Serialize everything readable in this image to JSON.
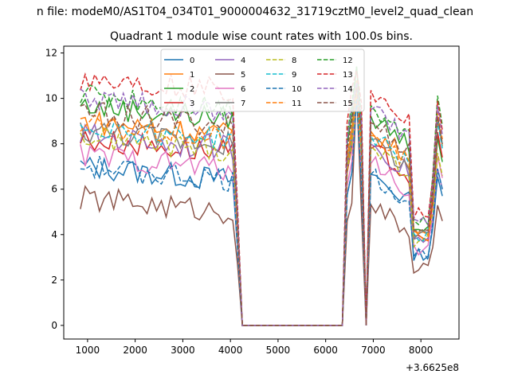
{
  "suptitle": "n file: modeM0/AS1T04_034T01_9000004632_31719cztM0_level2_quad_clean",
  "chart_data": {
    "type": "line",
    "title": "Quadrant 1 module wise count rates with 100.0s bins.",
    "xlabel": "",
    "ylabel": "",
    "x_offset_label": "+3.6625e8",
    "xlim": [
      500,
      8800
    ],
    "ylim": [
      -0.6,
      12.3
    ],
    "x_ticks": [
      1000,
      2000,
      3000,
      4000,
      5000,
      6000,
      7000,
      8000
    ],
    "y_ticks": [
      0,
      2,
      4,
      6,
      8,
      10,
      12
    ],
    "x_tick_labels": [
      "1000",
      "2000",
      "3000",
      "4000",
      "5000",
      "6000",
      "7000",
      "8000"
    ],
    "y_tick_labels": [
      "0",
      "2",
      "4",
      "6",
      "8",
      "10",
      "12"
    ],
    "legend_ncol": 4,
    "legend_position": "upper-center",
    "colors": [
      "#1f77b4",
      "#ff7f0e",
      "#2ca02c",
      "#d62728",
      "#9467bd",
      "#8c564b",
      "#e377c2",
      "#7f7f7f",
      "#bcbd22",
      "#17becf"
    ],
    "x": [
      850,
      950,
      1050,
      1150,
      1250,
      1350,
      1450,
      1550,
      1650,
      1750,
      1850,
      1950,
      2050,
      2150,
      2250,
      2350,
      2450,
      2550,
      2650,
      2750,
      2850,
      2950,
      3050,
      3150,
      3250,
      3350,
      3450,
      3550,
      3650,
      3750,
      3850,
      3950,
      4050,
      4150,
      4250,
      6350,
      6450,
      6550,
      6650,
      6750,
      6850,
      6950,
      7050,
      7150,
      7250,
      7350,
      7450,
      7550,
      7650,
      7750,
      7850,
      7950,
      8050,
      8150,
      8250,
      8350,
      8450
    ],
    "series": [
      {
        "name": "0",
        "base": 7.0,
        "style": "solid",
        "color_index": 0,
        "end_value": 5.7,
        "peak_value": 10.2
      },
      {
        "name": "1",
        "base": 9.0,
        "style": "solid",
        "color_index": 1,
        "end_value": 7.9,
        "peak_value": 10.8
      },
      {
        "name": "2",
        "base": 9.7,
        "style": "solid",
        "color_index": 2,
        "end_value": 7.2,
        "peak_value": 11.4
      },
      {
        "name": "3",
        "base": 8.2,
        "style": "solid",
        "color_index": 3,
        "end_value": 7.4,
        "peak_value": 10.6
      },
      {
        "name": "4",
        "base": 8.4,
        "style": "solid",
        "color_index": 4,
        "end_value": 6.0,
        "peak_value": 10.4
      },
      {
        "name": "5",
        "base": 5.6,
        "style": "solid",
        "color_index": 5,
        "end_value": 4.6,
        "peak_value": 10.4
      },
      {
        "name": "6",
        "base": 7.5,
        "style": "solid",
        "color_index": 6,
        "end_value": 6.5,
        "peak_value": 10.3
      },
      {
        "name": "7",
        "base": 8.6,
        "style": "solid",
        "color_index": 7,
        "end_value": 8.0,
        "peak_value": 10.5
      },
      {
        "name": "8",
        "base": 8.3,
        "style": "dashed",
        "color_index": 8,
        "end_value": 6.6,
        "peak_value": 10.2
      },
      {
        "name": "9",
        "base": 8.8,
        "style": "dashed",
        "color_index": 9,
        "end_value": 7.8,
        "peak_value": 10.4
      },
      {
        "name": "10",
        "base": 7.0,
        "style": "dashed",
        "color_index": 0,
        "end_value": 6.0,
        "peak_value": 10.0
      },
      {
        "name": "11",
        "base": 8.8,
        "style": "dashed",
        "color_index": 1,
        "end_value": 8.2,
        "peak_value": 10.3
      },
      {
        "name": "12",
        "base": 10.2,
        "style": "dashed",
        "color_index": 2,
        "end_value": 8.8,
        "peak_value": 11.4
      },
      {
        "name": "13",
        "base": 10.9,
        "style": "dashed",
        "color_index": 3,
        "end_value": 8.6,
        "peak_value": 11.2
      },
      {
        "name": "14",
        "base": 10.0,
        "style": "dashed",
        "color_index": 4,
        "end_value": 8.4,
        "peak_value": 10.7
      },
      {
        "name": "15",
        "base": 9.4,
        "style": "dashed",
        "color_index": 5,
        "end_value": 8.0,
        "peak_value": 10.5
      }
    ]
  }
}
